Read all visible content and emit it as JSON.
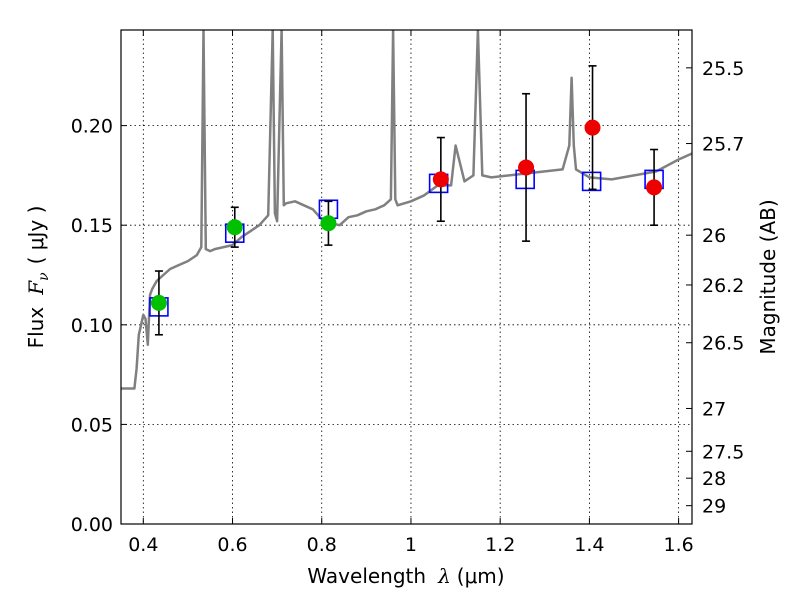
{
  "chart_data": {
    "type": "scatter",
    "xlabel_prefix": "Wavelength",
    "xlabel_symbol": "λ",
    "xlabel_unit": "(μm)",
    "ylabel_prefix": "Flux",
    "ylabel_symbol": "F",
    "ylabel_sub": "ν",
    "ylabel_unit": "( μJy )",
    "y2label": "Magnitude (AB)",
    "xlim": [
      0.35,
      1.63
    ],
    "ylim": [
      0.0,
      0.248
    ],
    "grid": true,
    "x_ticks": [
      0.4,
      0.6,
      0.8,
      1.0,
      1.2,
      1.4,
      1.6
    ],
    "x_tick_labels": [
      "0.4",
      "0.6",
      "0.8",
      "1",
      "1.2",
      "1.4",
      "1.6"
    ],
    "y_ticks": [
      0.0,
      0.05,
      0.1,
      0.15,
      0.2
    ],
    "y_tick_labels": [
      "0.00",
      "0.05",
      "0.10",
      "0.15",
      "0.20"
    ],
    "y2_tick_labels": [
      "25.5",
      "25.7",
      "26",
      "26.2",
      "26.5",
      "27",
      "27.5",
      "28",
      "29"
    ],
    "y2_tick_values_flux": [
      0.229,
      0.191,
      0.145,
      0.12,
      0.091,
      0.058,
      0.0365,
      0.023,
      0.0092
    ],
    "colors": {
      "model": "#808080",
      "green": "#00c000",
      "red": "#ee0000",
      "box": "#0000ff",
      "error": "#000000"
    },
    "model_spectrum": {
      "x": [
        0.35,
        0.38,
        0.385,
        0.39,
        0.395,
        0.4,
        0.405,
        0.41,
        0.415,
        0.42,
        0.43,
        0.44,
        0.45,
        0.46,
        0.48,
        0.5,
        0.52,
        0.53,
        0.535,
        0.54,
        0.55,
        0.56,
        0.58,
        0.6,
        0.62,
        0.64,
        0.66,
        0.68,
        0.69,
        0.695,
        0.7,
        0.71,
        0.715,
        0.72,
        0.74,
        0.76,
        0.78,
        0.8,
        0.82,
        0.84,
        0.86,
        0.88,
        0.9,
        0.92,
        0.94,
        0.955,
        0.96,
        0.965,
        0.97,
        1.0,
        1.03,
        1.06,
        1.09,
        1.1,
        1.12,
        1.14,
        1.15,
        1.16,
        1.18,
        1.22,
        1.26,
        1.3,
        1.34,
        1.355,
        1.36,
        1.365,
        1.37,
        1.4,
        1.45,
        1.5,
        1.55,
        1.6,
        1.63
      ],
      "y": [
        0.068,
        0.068,
        0.078,
        0.095,
        0.1,
        0.105,
        0.103,
        0.09,
        0.115,
        0.118,
        0.122,
        0.124,
        0.126,
        0.128,
        0.13,
        0.132,
        0.135,
        0.139,
        0.248,
        0.138,
        0.137,
        0.138,
        0.139,
        0.14,
        0.144,
        0.147,
        0.15,
        0.155,
        0.248,
        0.156,
        0.152,
        0.248,
        0.16,
        0.161,
        0.162,
        0.16,
        0.158,
        0.153,
        0.151,
        0.15,
        0.154,
        0.155,
        0.157,
        0.158,
        0.16,
        0.163,
        0.248,
        0.163,
        0.16,
        0.162,
        0.165,
        0.17,
        0.17,
        0.19,
        0.172,
        0.175,
        0.248,
        0.175,
        0.174,
        0.175,
        0.176,
        0.177,
        0.178,
        0.19,
        0.224,
        0.19,
        0.178,
        0.174,
        0.173,
        0.175,
        0.177,
        0.183,
        0.186
      ]
    },
    "series": [
      {
        "marker": "circle",
        "color": "green",
        "x": [
          0.435,
          0.605,
          0.815
        ],
        "y": [
          0.111,
          0.149,
          0.151
        ],
        "yerr": [
          0.016,
          0.01,
          0.011
        ]
      },
      {
        "marker": "circle",
        "color": "red",
        "x": [
          1.067,
          1.258,
          1.407,
          1.545
        ],
        "y": [
          0.173,
          0.179,
          0.199,
          0.169
        ],
        "yerr": [
          0.021,
          0.037,
          0.031,
          0.019
        ]
      },
      {
        "marker": "square",
        "color": "box",
        "x": [
          0.435,
          0.605,
          0.815,
          1.062,
          1.256,
          1.405,
          1.545
        ],
        "y": [
          0.109,
          0.146,
          0.158,
          0.171,
          0.173,
          0.172,
          0.173
        ]
      }
    ]
  }
}
